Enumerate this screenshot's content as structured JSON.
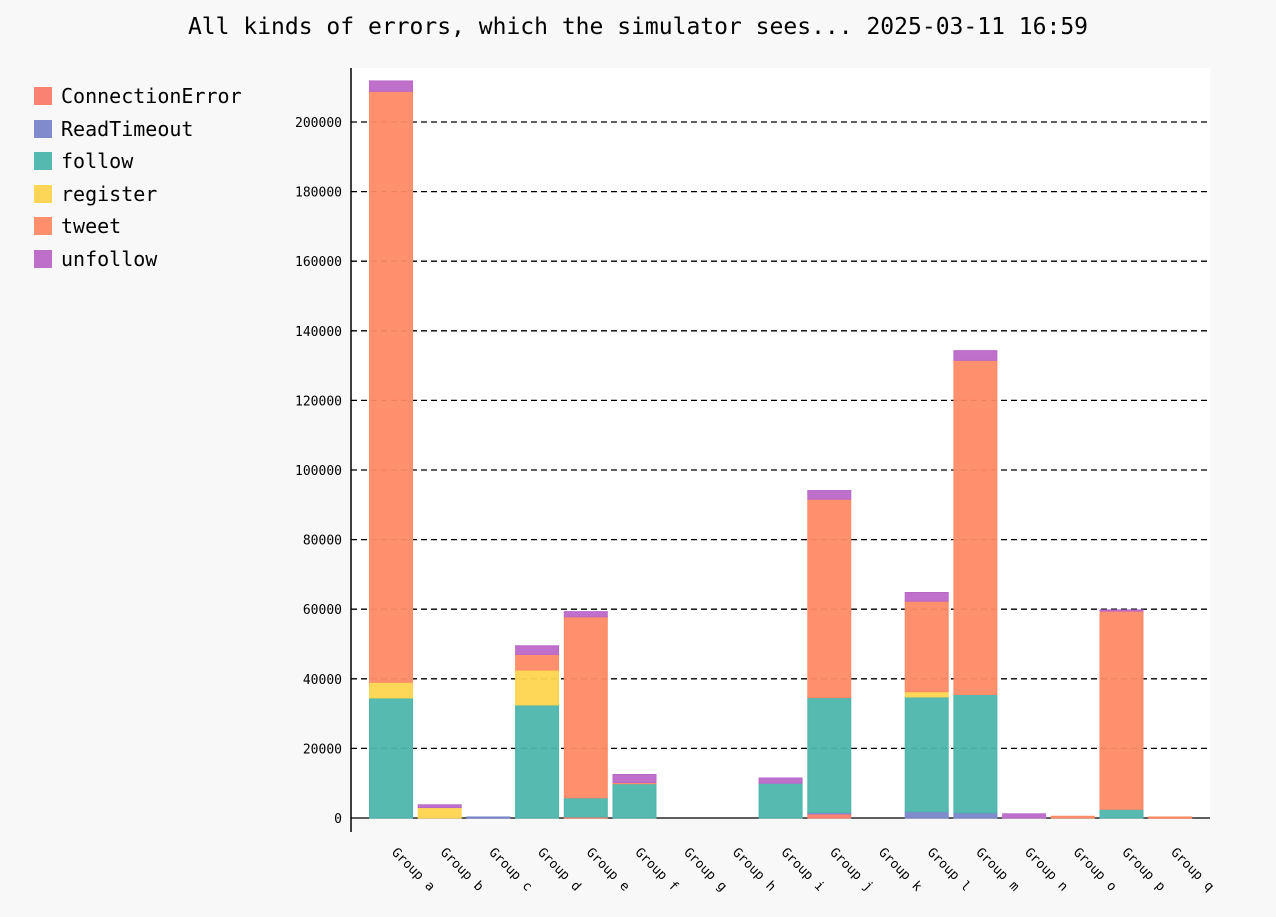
{
  "chart_data": {
    "type": "bar",
    "stacked": true,
    "title": "All kinds of errors, which the simulator sees... 2025-03-11 16:59",
    "xlabel": "",
    "ylabel": "",
    "ylim": [
      0,
      215000
    ],
    "yticks": [
      "0",
      "20000",
      "40000",
      "60000",
      "80000",
      "100000",
      "120000",
      "140000",
      "160000",
      "180000",
      "200000"
    ],
    "grid": "horizontal dashed",
    "legend_position": "top-left",
    "categories": [
      "Group a",
      "Group b",
      "Group c",
      "Group d",
      "Group e",
      "Group f",
      "Group g",
      "Group h",
      "Group i",
      "Group j",
      "Group k",
      "Group l",
      "Group m",
      "Group n",
      "Group o",
      "Group p",
      "Group q"
    ],
    "series": [
      {
        "name": "ConnectionError",
        "color": "#fa7c6b",
        "values": [
          0,
          0,
          0,
          0,
          300,
          0,
          0,
          0,
          0,
          1200,
          0,
          0,
          0,
          0,
          0,
          0,
          0
        ]
      },
      {
        "name": "ReadTimeout",
        "color": "#7986cb",
        "values": [
          0,
          0,
          300,
          0,
          0,
          0,
          0,
          0,
          0,
          400,
          0,
          1800,
          1500,
          0,
          0,
          0,
          0
        ]
      },
      {
        "name": "follow",
        "color": "#4db6ac",
        "values": [
          34500,
          0,
          0,
          32500,
          5500,
          10000,
          0,
          0,
          10000,
          33000,
          0,
          33000,
          34000,
          0,
          0,
          2500,
          0
        ]
      },
      {
        "name": "register",
        "color": "#ffd54f",
        "values": [
          4500,
          3000,
          0,
          10000,
          0,
          0,
          0,
          0,
          0,
          0,
          0,
          1500,
          0,
          0,
          0,
          0,
          0
        ]
      },
      {
        "name": "tweet",
        "color": "#ff8a65",
        "values": [
          169800,
          0,
          0,
          4500,
          52000,
          200,
          0,
          0,
          0,
          57000,
          0,
          26000,
          96000,
          0,
          500,
          57000,
          300
        ]
      },
      {
        "name": "unfollow",
        "color": "#ba68c8",
        "values": [
          3000,
          800,
          0,
          2500,
          1500,
          2300,
          0,
          0,
          1500,
          2500,
          0,
          2500,
          2800,
          1200,
          0,
          300,
          0
        ]
      }
    ]
  }
}
